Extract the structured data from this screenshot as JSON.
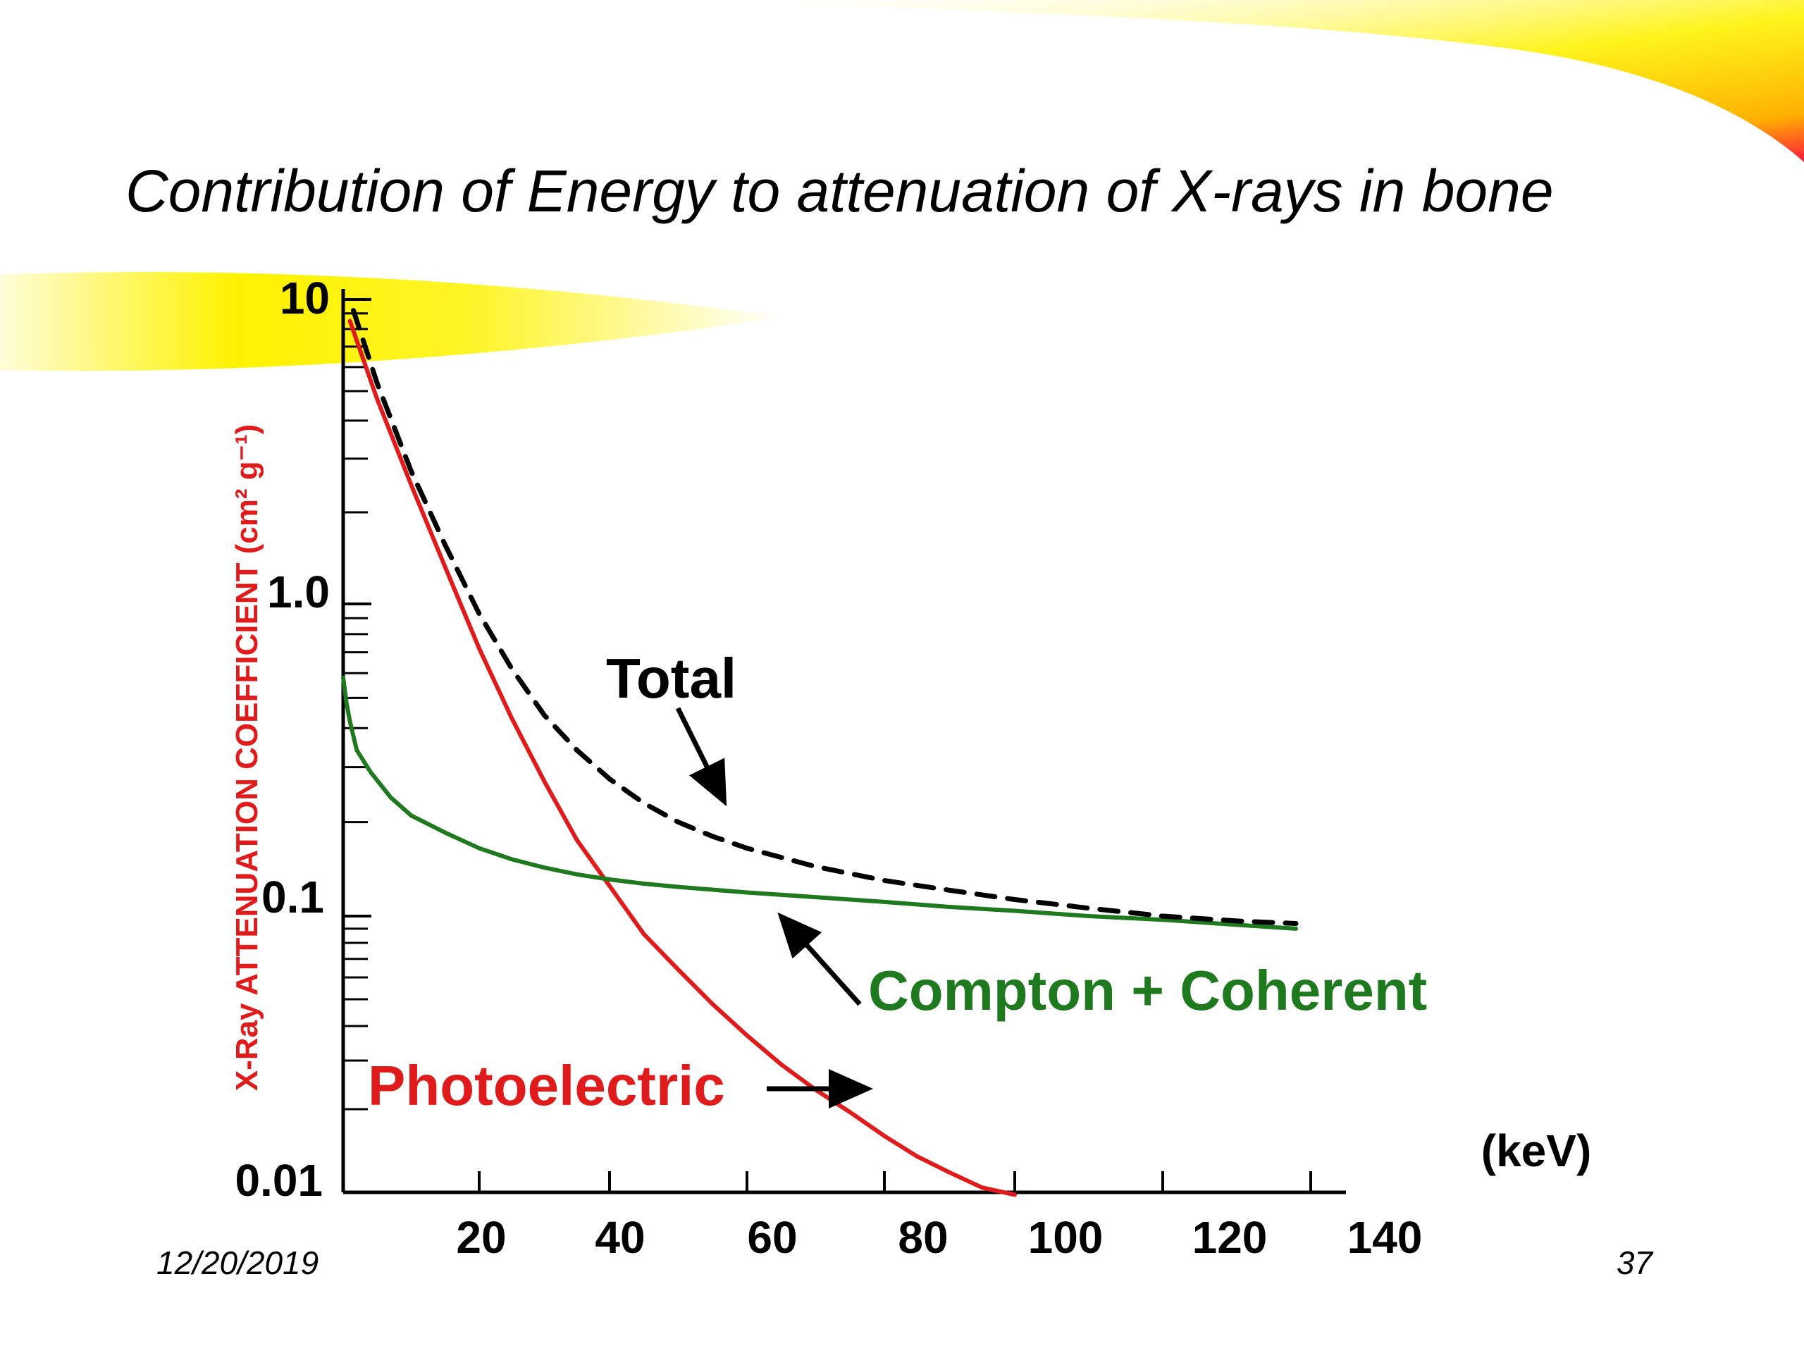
{
  "slide": {
    "title": "Contribution of Energy to attenuation of X-rays in bone",
    "date": "12/20/2019",
    "page_number": "37"
  },
  "colors": {
    "photoelectric": "#e01b1b",
    "compton": "#1f7a1f",
    "total": "#000000",
    "axis": "#000000",
    "highlight": "#fff200"
  },
  "chart_data": {
    "type": "line",
    "title": "",
    "xlabel": "(keV)",
    "ylabel": "X-Ray ATTENUATION COEFFICIENT (cm² g⁻¹)",
    "xlim": [
      0,
      140
    ],
    "ylim": [
      0.01,
      10
    ],
    "y_scale": "log",
    "x_ticks": [
      "20",
      "40",
      "60",
      "80",
      "100",
      "120",
      "140"
    ],
    "y_ticks": [
      "0.01",
      "0.1",
      "1.0",
      "10"
    ],
    "series": [
      {
        "name": "Photoelectric",
        "style": "solid",
        "color": "#e01b1b",
        "x": [
          1,
          5,
          10,
          15,
          20,
          25,
          30,
          35,
          40,
          45,
          50,
          55,
          60,
          65,
          70,
          75,
          80,
          85,
          90,
          95,
          100
        ],
        "y": [
          8.5,
          4.7,
          2.46,
          1.32,
          0.72,
          0.43,
          0.27,
          0.175,
          0.125,
          0.086,
          0.064,
          0.048,
          0.037,
          0.029,
          0.0235,
          0.0195,
          0.016,
          0.0135,
          0.0118,
          0.0104,
          0.0098
        ]
      },
      {
        "name": "Compton + Coherent",
        "style": "solid",
        "color": "#1f7a1f",
        "x": [
          0,
          0.5,
          1,
          2,
          4,
          7,
          10,
          15,
          20,
          25,
          30,
          35,
          40,
          45,
          50,
          60,
          70,
          80,
          90,
          100,
          110,
          120,
          130,
          138
        ],
        "y": [
          0.58,
          0.48,
          0.42,
          0.34,
          0.29,
          0.24,
          0.21,
          0.185,
          0.165,
          0.152,
          0.143,
          0.136,
          0.131,
          0.127,
          0.124,
          0.119,
          0.115,
          0.111,
          0.107,
          0.104,
          0.1,
          0.097,
          0.093,
          0.09
        ]
      },
      {
        "name": "Total",
        "style": "dashed",
        "color": "#000000",
        "x": [
          1.5,
          5,
          10,
          15,
          20,
          25,
          30,
          35,
          40,
          45,
          50,
          55,
          60,
          70,
          80,
          90,
          100,
          110,
          120,
          130,
          138
        ],
        "y": [
          9.2,
          5.3,
          2.73,
          1.56,
          0.93,
          0.62,
          0.44,
          0.34,
          0.275,
          0.23,
          0.2,
          0.18,
          0.165,
          0.144,
          0.13,
          0.121,
          0.113,
          0.106,
          0.1,
          0.096,
          0.094
        ]
      }
    ],
    "annotations": [
      {
        "text": "Total",
        "color": "#000000"
      },
      {
        "text": "Compton + Coherent",
        "color": "#1f7a1f"
      },
      {
        "text": "Photoelectric",
        "color": "#e01b1b"
      }
    ]
  }
}
